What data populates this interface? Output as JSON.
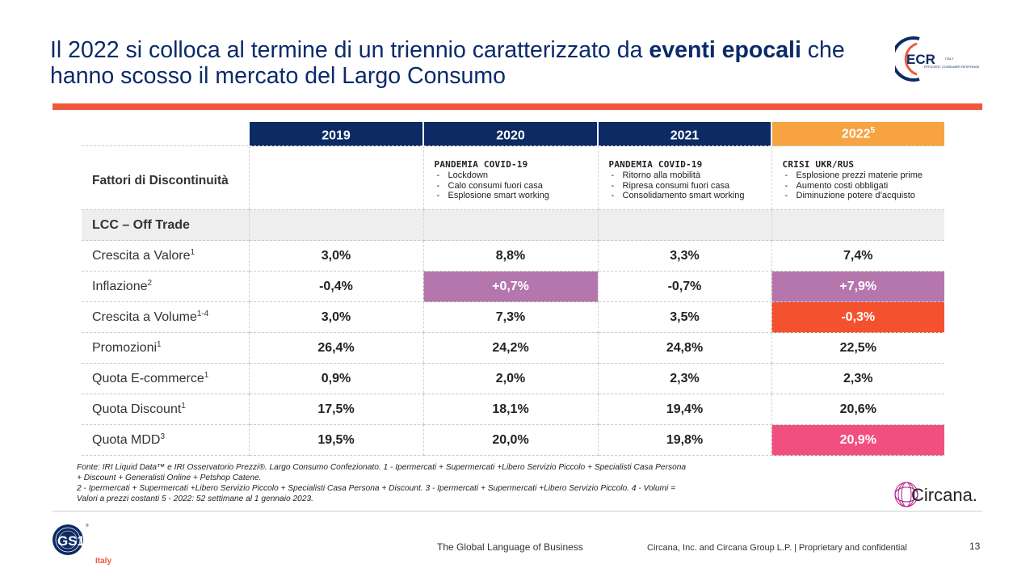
{
  "title": {
    "part1": "Il 2022 si colloca al termine di un triennio caratterizzato da ",
    "bold1": "eventi epocali",
    "part2": " che hanno scosso il mercato del Largo Consumo"
  },
  "logos": {
    "ecr_text": "ECR",
    "ecr_sub1": "ITALY",
    "ecr_sub2": "EFFICIENT CONSUMER RESPONSE",
    "circana_text": "Circana.",
    "gs1_text": "GS1",
    "gs1_country": "Italy",
    "gs1_reg": "®"
  },
  "colors": {
    "navy": "#0c2a63",
    "orange_header": "#f7a341",
    "orange_rule": "#f1573b",
    "purple": "#b576ae",
    "red": "#f4522f",
    "pink": "#f24f81"
  },
  "table": {
    "years": [
      {
        "label": "2019",
        "sup": ""
      },
      {
        "label": "2020",
        "sup": ""
      },
      {
        "label": "2021",
        "sup": ""
      },
      {
        "label": "2022",
        "sup": "5"
      }
    ],
    "factors_label": "Fattori di Discontinuità",
    "factors": [
      {
        "title": "",
        "items": []
      },
      {
        "title": "PANDEMIA COVID-19",
        "items": [
          "Lockdown",
          "Calo consumi fuori casa",
          "Esplosione smart working"
        ]
      },
      {
        "title": "PANDEMIA COVID-19",
        "items": [
          "Ritorno alla mobilità",
          "Ripresa consumi fuori casa",
          "Consolidamento smart working"
        ]
      },
      {
        "title": "CRISI UKR/RUS",
        "items": [
          "Esplosione prezzi materie prime",
          "Aumento costi obbligati",
          "Diminuzione potere d’acquisto"
        ]
      }
    ],
    "section_label": "LCC – Off Trade",
    "rows": [
      {
        "label": "Crescita a Valore",
        "sup": "1",
        "values": [
          "3,0%",
          "8,8%",
          "3,3%",
          "7,4%"
        ],
        "highlight": [
          "",
          "",
          "",
          ""
        ]
      },
      {
        "label": "Inflazione",
        "sup": "2",
        "values": [
          "-0,4%",
          "+0,7%",
          "-0,7%",
          "+7,9%"
        ],
        "highlight": [
          "",
          "purple",
          "",
          "purple"
        ]
      },
      {
        "label": "Crescita a Volume",
        "sup": "1-4",
        "values": [
          "3,0%",
          "7,3%",
          "3,5%",
          "-0,3%"
        ],
        "highlight": [
          "",
          "",
          "",
          "red"
        ]
      },
      {
        "label": "Promozioni",
        "sup": "1",
        "values": [
          "26,4%",
          "24,2%",
          "24,8%",
          "22,5%"
        ],
        "highlight": [
          "",
          "",
          "",
          ""
        ]
      },
      {
        "label": "Quota E-commerce",
        "sup": "1",
        "values": [
          "0,9%",
          "2,0%",
          "2,3%",
          "2,3%"
        ],
        "highlight": [
          "",
          "",
          "",
          ""
        ]
      },
      {
        "label": "Quota Discount",
        "sup": "1",
        "values": [
          "17,5%",
          "18,1%",
          "19,4%",
          "20,6%"
        ],
        "highlight": [
          "",
          "",
          "",
          ""
        ]
      },
      {
        "label": "Quota MDD",
        "sup": "3",
        "values": [
          "19,5%",
          "20,0%",
          "19,8%",
          "20,9%"
        ],
        "highlight": [
          "",
          "",
          "",
          "pink"
        ]
      }
    ]
  },
  "footnote": {
    "line1": "Fonte: IRI Liquid Data™ e IRI Osservatorio Prezzi®. Largo Consumo Confezionato. 1 - Ipermercati + Supermercati +Libero Servizio Piccolo + Specialisti Casa Persona",
    "line2": "+ Discount + Generalisti Online  + Petshop Catene.",
    "line3": "2 - Ipermercati + Supermercati +Libero Servizio Piccolo + Specialisti Casa Persona + Discount. 3 - Ipermercati + Supermercati +Libero Servizio Piccolo. 4 - Volumi =",
    "line4": "Valori a prezzi costanti 5 - 2022: 52 settimane al 1 gennaio 2023."
  },
  "footer": {
    "tagline": "The Global Language of Business",
    "legal": "Circana, Inc. and Circana Group L.P. | Proprietary and confidential",
    "page": "13"
  }
}
